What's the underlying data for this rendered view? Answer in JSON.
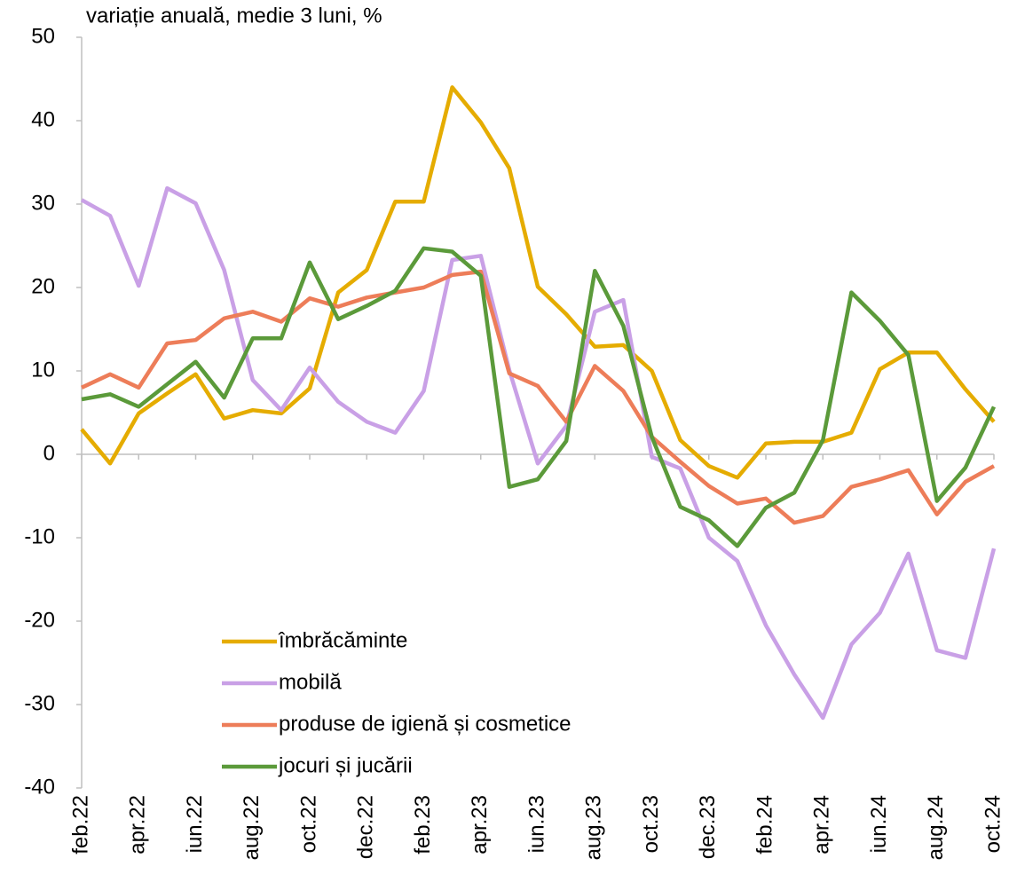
{
  "chart_data": {
    "type": "line",
    "title": "variație anuală, medie 3 luni, %",
    "categories": [
      "feb.22",
      null,
      "apr.22",
      null,
      "iun.22",
      null,
      "aug.22",
      null,
      "oct.22",
      null,
      "dec.22",
      null,
      "feb.23",
      null,
      "apr.23",
      null,
      "iun.23",
      null,
      "aug.23",
      null,
      "oct.23",
      null,
      "dec.23",
      null,
      "feb.24",
      null,
      "apr.24",
      null,
      "iun.24",
      null,
      "aug.24",
      null,
      "oct.24"
    ],
    "series": [
      {
        "name": "îmbrăcăminte",
        "color": "#e5ac00",
        "values": [
          3.0,
          -1.1,
          4.9,
          7.3,
          9.6,
          4.3,
          5.3,
          4.9,
          7.9,
          19.4,
          22.1,
          30.3,
          30.3,
          44.0,
          39.8,
          34.3,
          20.1,
          16.8,
          12.9,
          13.1,
          10.0,
          1.7,
          -1.4,
          -2.8,
          1.3,
          1.5,
          1.5,
          2.6,
          10.2,
          12.2,
          12.2,
          7.8,
          3.9
        ]
      },
      {
        "name": "mobilă",
        "color": "#c9a0e6",
        "values": [
          30.5,
          28.6,
          20.2,
          31.9,
          30.1,
          22.1,
          8.9,
          5.3,
          10.4,
          6.3,
          3.9,
          2.6,
          7.6,
          23.3,
          23.8,
          10.1,
          -1.1,
          3.4,
          17.1,
          18.5,
          -0.3,
          -1.7,
          -10.0,
          -12.8,
          -20.5,
          -26.4,
          -31.6,
          -22.8,
          -19.0,
          -11.9,
          -23.5,
          -24.4,
          -11.3
        ]
      },
      {
        "name": "produse de igienă și cosmetice",
        "color": "#ed7d59",
        "values": [
          8.0,
          9.6,
          8.0,
          13.3,
          13.7,
          16.3,
          17.1,
          15.9,
          18.7,
          17.7,
          18.8,
          19.4,
          20.0,
          21.5,
          21.9,
          9.7,
          8.2,
          3.9,
          10.6,
          7.6,
          2.1,
          -0.9,
          -3.8,
          -5.9,
          -5.3,
          -8.2,
          -7.4,
          -3.9,
          -3.0,
          -1.9,
          -7.2,
          -3.3,
          -1.4
        ]
      },
      {
        "name": "jocuri și jucării",
        "color": "#5b9a3a",
        "values": [
          6.6,
          7.2,
          5.7,
          8.4,
          11.1,
          6.8,
          13.9,
          13.9,
          23.0,
          16.2,
          17.8,
          19.6,
          24.7,
          24.3,
          21.4,
          -3.9,
          -3.0,
          1.6,
          22.0,
          15.4,
          2.1,
          -6.3,
          -7.9,
          -11.0,
          -6.4,
          -4.6,
          1.7,
          19.4,
          16.0,
          11.9,
          -5.6,
          -1.6,
          5.7
        ]
      }
    ],
    "ylim": [
      -40,
      50
    ],
    "yticks": [
      -40,
      -30,
      -20,
      -10,
      0,
      10,
      20,
      30,
      40,
      50
    ],
    "grid": false,
    "legend": "lower left"
  }
}
